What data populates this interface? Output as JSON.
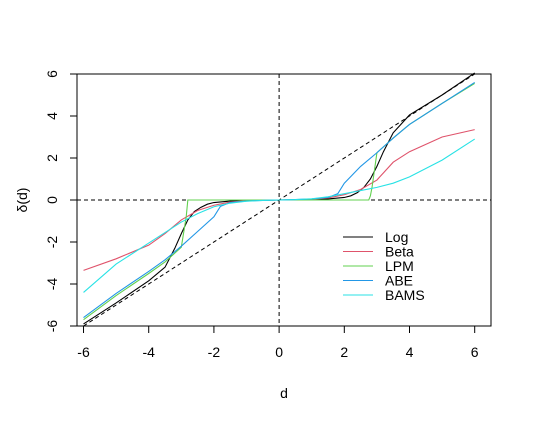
{
  "chart_data": {
    "type": "line",
    "title": "",
    "xlabel": "d",
    "ylabel": "δ(d)",
    "xlim": [
      -6.2,
      6.5
    ],
    "ylim": [
      -6.0,
      6.0
    ],
    "x_ticks": [
      -6,
      -4,
      -2,
      0,
      2,
      4,
      6
    ],
    "x_tick_labels": [
      "-6",
      "-4",
      "-2",
      "0",
      "2",
      "4",
      "6"
    ],
    "y_ticks": [
      -6,
      -4,
      -2,
      0,
      2,
      4,
      6
    ],
    "y_tick_labels": [
      "-6",
      "-4",
      "-2",
      "0",
      "2",
      "4",
      "6"
    ],
    "grid": false,
    "legend_position": "lower-right",
    "reference_lines": [
      {
        "kind": "hline",
        "y": 0,
        "style": "dashed"
      },
      {
        "kind": "vline",
        "x": 0,
        "style": "dashed"
      },
      {
        "kind": "diagonal",
        "slope": 1,
        "intercept": 0,
        "style": "dashed"
      }
    ],
    "series": [
      {
        "name": "Log",
        "color": "#000000",
        "x": [
          -6,
          -5,
          -4,
          -3.5,
          -3.2,
          -3,
          -2.8,
          -2.6,
          -2.4,
          -2.2,
          -2,
          -1.5,
          -1,
          -0.5,
          0,
          0.5,
          1,
          1.5,
          2,
          2.2,
          2.4,
          2.6,
          2.8,
          3,
          3.2,
          3.5,
          4,
          5,
          6
        ],
        "y": [
          -5.9,
          -4.9,
          -3.85,
          -3.2,
          -2.3,
          -1.6,
          -0.95,
          -0.55,
          -0.35,
          -0.2,
          -0.12,
          -0.05,
          -0.02,
          -0.01,
          0,
          0.01,
          0.02,
          0.05,
          0.12,
          0.2,
          0.35,
          0.6,
          1.0,
          1.6,
          2.3,
          3.2,
          4.05,
          5.0,
          6.05
        ]
      },
      {
        "name": "Beta",
        "color": "#df536b",
        "x": [
          -6,
          -5,
          -4,
          -3.5,
          -3,
          -2.5,
          -2,
          -1.5,
          -1,
          -0.5,
          0,
          0.5,
          1,
          1.5,
          2,
          2.5,
          3,
          3.5,
          4,
          5,
          6
        ],
        "y": [
          -3.35,
          -2.8,
          -2.15,
          -1.6,
          -0.95,
          -0.5,
          -0.25,
          -0.1,
          -0.04,
          -0.01,
          0,
          0.01,
          0.04,
          0.1,
          0.25,
          0.5,
          0.95,
          1.8,
          2.3,
          3.0,
          3.35
        ]
      },
      {
        "name": "LPM",
        "color": "#61d04f",
        "x": [
          -6,
          -5,
          -4,
          -3.5,
          -3,
          -2.85,
          -2.8,
          -2.5,
          -2,
          -1.5,
          -1,
          0,
          1,
          1.5,
          2,
          2.5,
          2.75,
          2.8,
          2.85,
          3,
          3.5,
          4,
          5,
          6
        ],
        "y": [
          -5.7,
          -4.55,
          -3.5,
          -2.95,
          -2.25,
          -0.8,
          0,
          0,
          0,
          0,
          0,
          0,
          0,
          0,
          0,
          0,
          0,
          0.2,
          0.6,
          2.25,
          2.95,
          3.6,
          4.6,
          5.55
        ]
      },
      {
        "name": "ABE",
        "color": "#2297e6",
        "x": [
          -6,
          -5,
          -4,
          -3.5,
          -3,
          -2.5,
          -2,
          -1.8,
          -1.5,
          -1,
          -0.5,
          0,
          0.5,
          1,
          1.5,
          1.8,
          2,
          2.5,
          3,
          3.5,
          4,
          5,
          6
        ],
        "y": [
          -5.6,
          -4.45,
          -3.4,
          -2.85,
          -2.2,
          -1.5,
          -0.8,
          -0.3,
          -0.12,
          -0.05,
          -0.02,
          0,
          0.02,
          0.05,
          0.12,
          0.3,
          0.8,
          1.6,
          2.25,
          2.95,
          3.6,
          4.6,
          5.6
        ]
      },
      {
        "name": "BAMS",
        "color": "#28e2e5",
        "x": [
          -6,
          -5,
          -4,
          -3.5,
          -3,
          -2.5,
          -2,
          -1.5,
          -1,
          -0.5,
          0,
          0.5,
          1,
          1.5,
          2,
          2.5,
          3,
          3.5,
          4,
          5,
          6
        ],
        "y": [
          -4.4,
          -3.05,
          -2.05,
          -1.55,
          -1.05,
          -0.65,
          -0.32,
          -0.15,
          -0.06,
          -0.02,
          0,
          0.02,
          0.06,
          0.15,
          0.3,
          0.45,
          0.6,
          0.8,
          1.1,
          1.9,
          2.9
        ]
      }
    ]
  }
}
